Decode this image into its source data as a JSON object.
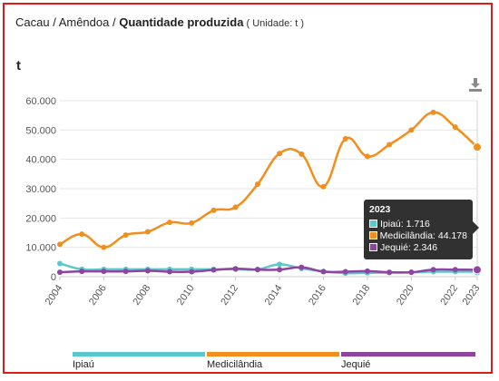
{
  "header": {
    "crumb1": "Cacau",
    "sep1": " / ",
    "crumb2": "Amêndoa",
    "sep2": " / ",
    "title": "Quantidade produzida",
    "unit_note": " ( Unidade: t )"
  },
  "unit_label": "t",
  "colors": {
    "frame": "#e0191b",
    "Ipiaú": "#5bc8c9",
    "Medicilândia": "#f28e1c",
    "Jequié": "#8e44a1",
    "grid": "#e6e6e6",
    "axis_text": "#555555"
  },
  "icons": {
    "download": "download-icon"
  },
  "tooltip": {
    "title": "2023",
    "rows": [
      {
        "series": "Ipiaú",
        "text": "Ipiaú: 1.716"
      },
      {
        "series": "Medicilândia",
        "text": "Medicilândia: 44.178"
      },
      {
        "series": "Jequié",
        "text": "Jequié: 2.346"
      }
    ]
  },
  "chart_data": {
    "type": "line",
    "title": "Quantidade produzida",
    "ylabel": "t",
    "ylim": [
      0,
      60000
    ],
    "yticks": [
      0,
      10000,
      20000,
      30000,
      40000,
      50000,
      60000
    ],
    "ytick_labels": [
      "0",
      "10.000",
      "20.000",
      "30.000",
      "40.000",
      "50.000",
      "60.000"
    ],
    "xlim": [
      2004,
      2023
    ],
    "xticks": [
      2004,
      2006,
      2008,
      2010,
      2012,
      2014,
      2016,
      2018,
      2020,
      2022,
      2023
    ],
    "x": [
      2004,
      2005,
      2006,
      2007,
      2008,
      2009,
      2010,
      2011,
      2012,
      2013,
      2014,
      2015,
      2016,
      2017,
      2018,
      2019,
      2020,
      2021,
      2022,
      2023
    ],
    "grid": true,
    "legend_position": "bottom",
    "series": [
      {
        "name": "Ipiaú",
        "values": [
          4500,
          2500,
          2500,
          2500,
          2500,
          2500,
          2500,
          2500,
          2500,
          2500,
          4200,
          2800,
          1800,
          1200,
          1300,
          1400,
          1500,
          1700,
          1700,
          1716
        ]
      },
      {
        "name": "Medicilândia",
        "values": [
          11000,
          14500,
          10000,
          14200,
          15300,
          18500,
          18300,
          22600,
          23700,
          31500,
          42000,
          41800,
          30700,
          47000,
          41000,
          45000,
          50000,
          56000,
          51000,
          44178
        ]
      },
      {
        "name": "Jequié",
        "values": [
          1500,
          1800,
          1800,
          1800,
          2000,
          1700,
          1700,
          2300,
          2700,
          2400,
          2400,
          3200,
          1700,
          1700,
          1900,
          1500,
          1500,
          2400,
          2400,
          2346
        ]
      }
    ]
  }
}
